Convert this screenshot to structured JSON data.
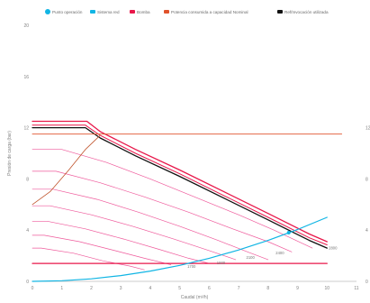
{
  "chart_data": {
    "type": "line",
    "title": "",
    "xlabel": "Caudal (m³/h)",
    "ylabel": "Presión de carga (bar)",
    "xlim": [
      0,
      11
    ],
    "ylim": [
      0,
      20
    ],
    "x_ticks": [
      "0",
      "1",
      "2",
      "3",
      "4",
      "5",
      "6",
      "7",
      "8",
      "9",
      "10",
      "11"
    ],
    "y_ticks": [
      "0",
      "4",
      "8",
      "12",
      "16",
      "20"
    ],
    "y2_ticks": [
      "0",
      "4",
      "8",
      "12"
    ],
    "grid": false,
    "legend_position": "top",
    "legend": [
      {
        "key": "punto",
        "label": "Punto operación",
        "color": "#11b5e4",
        "marker": "circle"
      },
      {
        "key": "sistema",
        "label": "Sistema red",
        "color": "#11b5e4",
        "marker": "line"
      },
      {
        "key": "bomba",
        "label": "Bomba",
        "color": "#e8174a",
        "marker": "line"
      },
      {
        "key": "potencia",
        "label": "Potencia consumida a capacidad Nominal",
        "color": "#e0522b",
        "marker": "line"
      },
      {
        "key": "ref",
        "label": "Ref/Invocación utilizada",
        "color": "#111111",
        "marker": "line"
      }
    ],
    "series": [
      {
        "role": "pump-max",
        "color": "#e8174a",
        "width": 1.3,
        "points": [
          [
            0,
            12.5
          ],
          [
            1.85,
            12.5
          ],
          [
            2.3,
            11.7
          ],
          [
            3.5,
            10.3
          ],
          [
            5,
            8.7
          ],
          [
            6.5,
            7.0
          ],
          [
            8,
            5.3
          ],
          [
            9.4,
            3.7
          ],
          [
            10,
            3.1
          ]
        ]
      },
      {
        "role": "reference",
        "color": "#111111",
        "width": 1.3,
        "points": [
          [
            0,
            12.0
          ],
          [
            1.8,
            12.0
          ],
          [
            2.3,
            11.2
          ],
          [
            3.5,
            9.8
          ],
          [
            5,
            8.2
          ],
          [
            6.5,
            6.5
          ],
          [
            8,
            4.8
          ],
          [
            9.4,
            3.2
          ],
          [
            10,
            2.6
          ]
        ]
      },
      {
        "role": "pump-max-outer",
        "color": "#e8174a",
        "width": 1.0,
        "points": [
          [
            0,
            12.2
          ],
          [
            1.8,
            12.2
          ],
          [
            2.3,
            11.4
          ],
          [
            3.5,
            10.0
          ],
          [
            5,
            8.4
          ],
          [
            6.5,
            6.7
          ],
          [
            8,
            5.0
          ],
          [
            9.4,
            3.4
          ],
          [
            10,
            2.85
          ]
        ]
      },
      {
        "role": "curve",
        "color": "#ef5b9c",
        "width": 0.7,
        "points": [
          [
            0,
            10.3
          ],
          [
            1.0,
            10.3
          ],
          [
            2.5,
            9.3
          ],
          [
            4,
            8.0
          ],
          [
            5.5,
            6.6
          ],
          [
            7,
            5.2
          ],
          [
            8.2,
            4.0
          ],
          [
            9.5,
            2.6
          ]
        ]
      },
      {
        "role": "curve",
        "color": "#ef5b9c",
        "width": 0.7,
        "points": [
          [
            0,
            8.6
          ],
          [
            0.8,
            8.6
          ],
          [
            2.3,
            7.7
          ],
          [
            3.8,
            6.6
          ],
          [
            5.3,
            5.4
          ],
          [
            6.8,
            4.1
          ],
          [
            8.0,
            3.1
          ],
          [
            8.8,
            2.3
          ]
        ]
      },
      {
        "role": "curve",
        "color": "#ef5b9c",
        "width": 0.7,
        "points": [
          [
            0,
            7.2
          ],
          [
            0.7,
            7.2
          ],
          [
            2.2,
            6.4
          ],
          [
            3.6,
            5.4
          ],
          [
            5.0,
            4.3
          ],
          [
            6.3,
            3.2
          ],
          [
            7.3,
            2.3
          ],
          [
            8.0,
            1.7
          ]
        ]
      },
      {
        "role": "curve",
        "color": "#ef5b9c",
        "width": 0.7,
        "points": [
          [
            0,
            5.9
          ],
          [
            0.6,
            5.9
          ],
          [
            2.0,
            5.2
          ],
          [
            3.4,
            4.3
          ],
          [
            4.8,
            3.3
          ],
          [
            6.0,
            2.4
          ],
          [
            6.9,
            1.7
          ]
        ]
      },
      {
        "role": "curve",
        "color": "#ef5b9c",
        "width": 0.7,
        "points": [
          [
            0,
            4.7
          ],
          [
            0.5,
            4.7
          ],
          [
            1.8,
            4.1
          ],
          [
            3.1,
            3.3
          ],
          [
            4.3,
            2.5
          ],
          [
            5.3,
            1.8
          ],
          [
            6.0,
            1.4
          ]
        ]
      },
      {
        "role": "curve",
        "color": "#ef5b9c",
        "width": 0.7,
        "points": [
          [
            0,
            3.6
          ],
          [
            0.4,
            3.6
          ],
          [
            1.6,
            3.1
          ],
          [
            2.8,
            2.4
          ],
          [
            3.8,
            1.8
          ],
          [
            4.7,
            1.3
          ]
        ]
      },
      {
        "role": "curve",
        "color": "#ef5b9c",
        "width": 0.7,
        "points": [
          [
            0,
            2.6
          ],
          [
            0.3,
            2.6
          ],
          [
            1.4,
            2.2
          ],
          [
            2.4,
            1.6
          ],
          [
            3.3,
            1.2
          ],
          [
            3.8,
            0.9
          ]
        ]
      },
      {
        "role": "pump-min",
        "color": "#e8174a",
        "width": 1.2,
        "points": [
          [
            0,
            1.4
          ],
          [
            10,
            1.4
          ]
        ]
      },
      {
        "role": "power",
        "color": "#e0522b",
        "width": 0.9,
        "points": [
          [
            0,
            11.5
          ],
          [
            10.5,
            11.5
          ]
        ]
      },
      {
        "role": "power-rise",
        "color": "#c0532b",
        "width": 0.8,
        "points": [
          [
            0,
            6.0
          ],
          [
            0.6,
            7.0
          ],
          [
            1.2,
            8.6
          ],
          [
            1.8,
            10.3
          ],
          [
            2.3,
            11.4
          ]
        ]
      },
      {
        "role": "system",
        "color": "#11b5e4",
        "width": 1.2,
        "points": [
          [
            0,
            0.0
          ],
          [
            1,
            0.05
          ],
          [
            2,
            0.2
          ],
          [
            3,
            0.45
          ],
          [
            4,
            0.8
          ],
          [
            5,
            1.25
          ],
          [
            6,
            1.8
          ],
          [
            7,
            2.45
          ],
          [
            8,
            3.2
          ],
          [
            9,
            4.05
          ],
          [
            10,
            5.0
          ]
        ]
      }
    ],
    "operating_point": {
      "x": 8.7,
      "y": 3.8,
      "color": "#11b5e4"
    },
    "curve_labels": [
      {
        "text": "1700",
        "x": 5.4,
        "y": 1.05
      },
      {
        "text": "1900",
        "x": 6.4,
        "y": 1.35
      },
      {
        "text": "2100",
        "x": 7.4,
        "y": 1.75
      },
      {
        "text": "2400",
        "x": 8.4,
        "y": 2.1
      },
      {
        "text": "2800",
        "x": 10.2,
        "y": 2.5
      }
    ]
  }
}
